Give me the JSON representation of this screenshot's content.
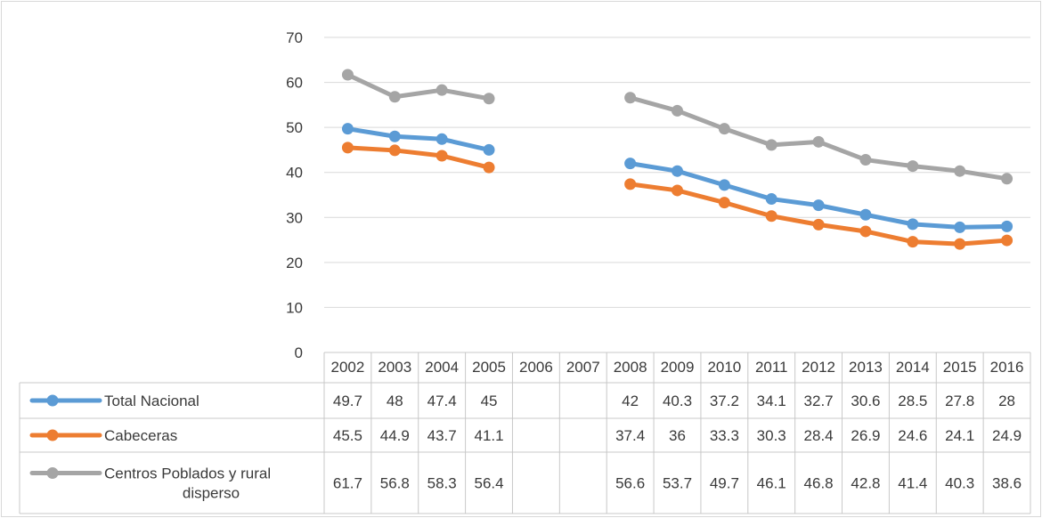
{
  "chart_data": {
    "type": "line",
    "title": "",
    "xlabel": "",
    "ylabel": "",
    "ylim": [
      0,
      70
    ],
    "yticks": [
      0,
      10,
      20,
      30,
      40,
      50,
      60,
      70
    ],
    "grid": true,
    "legend": "data-table-left",
    "categories": [
      "2002",
      "2003",
      "2004",
      "2005",
      "2006",
      "2007",
      "2008",
      "2009",
      "2010",
      "2011",
      "2012",
      "2013",
      "2014",
      "2015",
      "2016"
    ],
    "series": [
      {
        "name": "Total Nacional",
        "color": "#5b9bd5",
        "values": [
          49.7,
          48,
          47.4,
          45,
          null,
          null,
          42,
          40.3,
          37.2,
          34.1,
          32.7,
          30.6,
          28.5,
          27.8,
          28
        ]
      },
      {
        "name": "Cabeceras",
        "color": "#ed7d31",
        "values": [
          45.5,
          44.9,
          43.7,
          41.1,
          null,
          null,
          37.4,
          36,
          33.3,
          30.3,
          28.4,
          26.9,
          24.6,
          24.1,
          24.9
        ]
      },
      {
        "name": "Centros Poblados y rural disperso",
        "color": "#a5a5a5",
        "values": [
          61.7,
          56.8,
          58.3,
          56.4,
          null,
          null,
          56.6,
          53.7,
          49.7,
          46.1,
          46.8,
          42.8,
          41.4,
          40.3,
          38.6
        ]
      }
    ]
  }
}
